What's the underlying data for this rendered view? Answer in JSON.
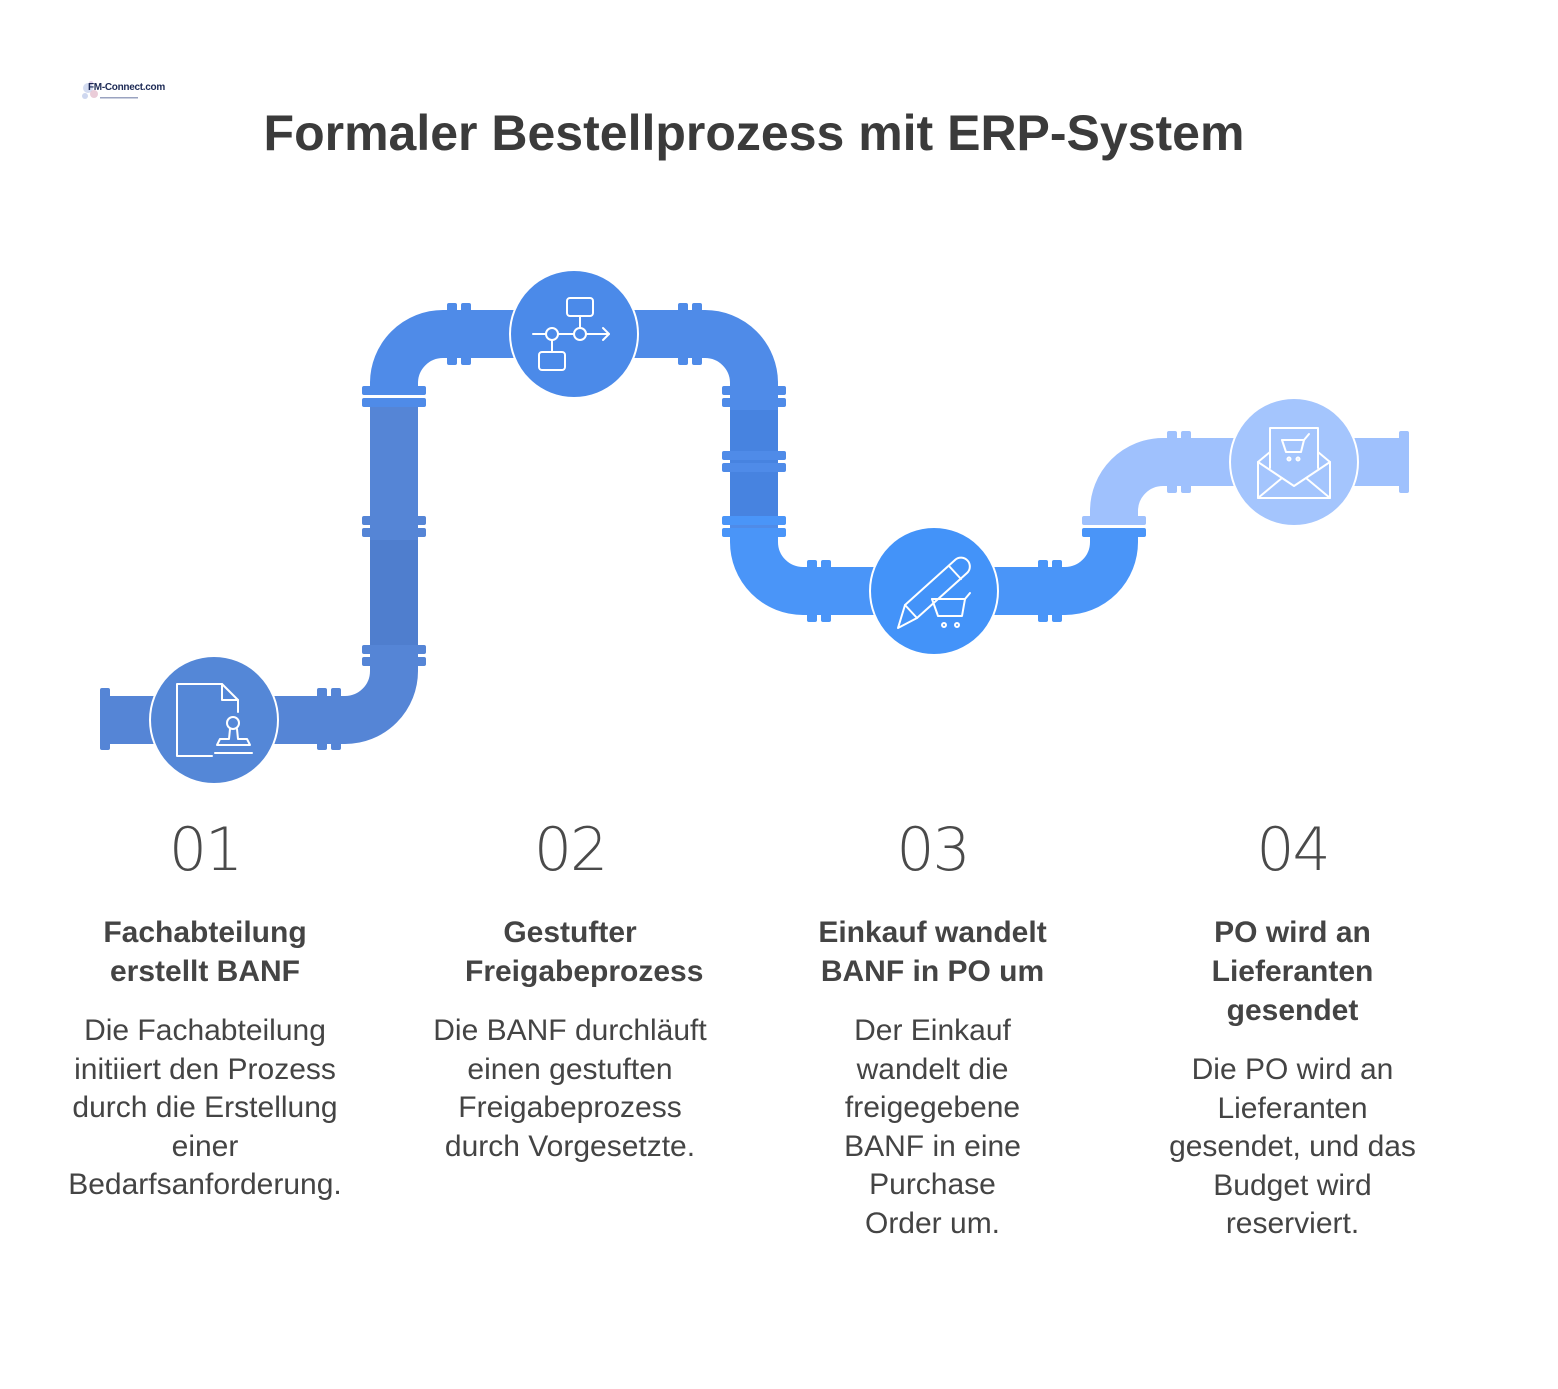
{
  "logo": {
    "text": "FM-Connect.com"
  },
  "title": "Formaler Bestellprozess mit ERP-System",
  "colors": {
    "pipe_1": "#5585d6",
    "pipe_1_dark": "#4a78c8",
    "pipe_2": "#4f8be8",
    "pipe_2_dark": "#3f79d6",
    "pipe_3": "#4a95f8",
    "pipe_4": "#9fc1fd",
    "node_1": "#5487d7",
    "node_2": "#4b8ae9",
    "node_3": "#4393f9",
    "node_4": "#a4c5fd",
    "icon_stroke": "#ffffff",
    "text": "#444444"
  },
  "steps": [
    {
      "number": "01",
      "icon": "document-stamp-icon",
      "heading": "Fachabteilung erstellt BANF",
      "description": "Die Fachabteilung initiiert den Prozess durch die Erstellung einer Bedarfsanforderung."
    },
    {
      "number": "02",
      "icon": "workflow-icon",
      "heading": "Gestufter Freigabeprozess",
      "description": "Die BANF durchläuft einen gestuften Freigabeprozess durch Vorgesetzte."
    },
    {
      "number": "03",
      "icon": "pencil-cart-icon",
      "heading": "Einkauf wandelt BANF in PO um",
      "description": "Der Einkauf wandelt die freigegebene BANF in eine Purchase Order um."
    },
    {
      "number": "04",
      "icon": "envelope-cart-icon",
      "heading": "PO wird an Lieferanten gesendet",
      "description": "Die PO wird an Lieferanten gesendet, und das Budget wird reserviert."
    }
  ]
}
